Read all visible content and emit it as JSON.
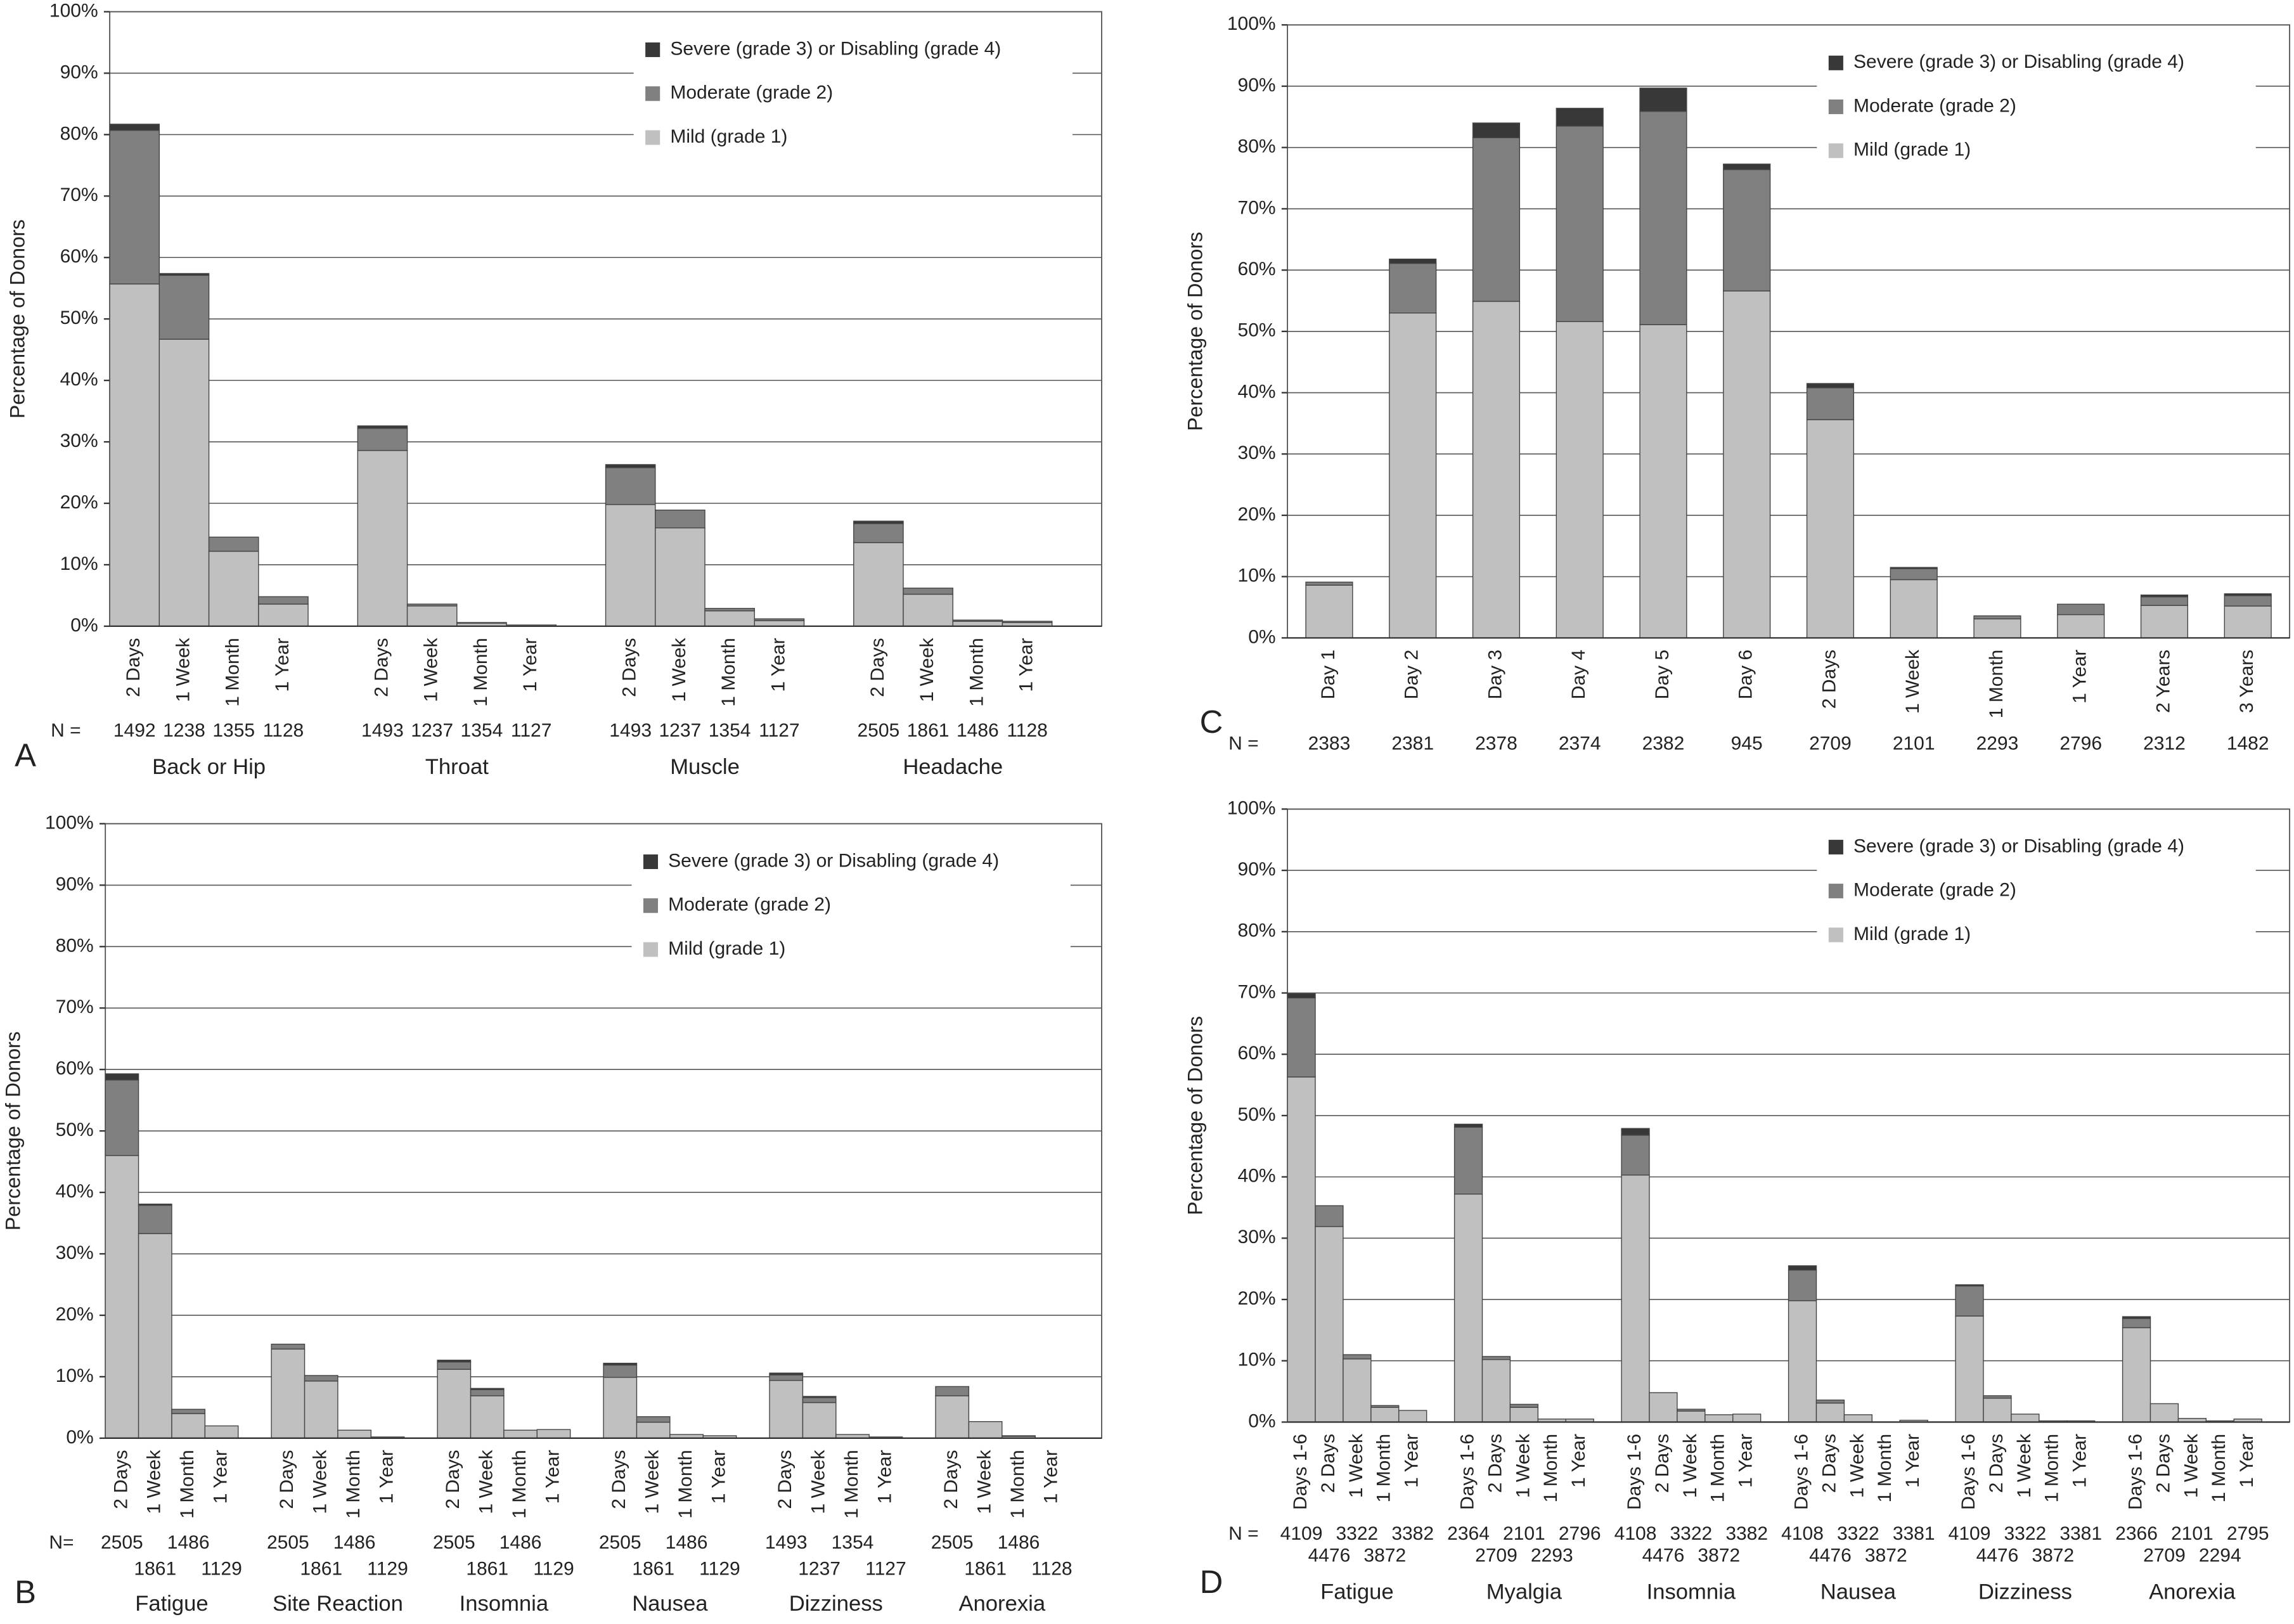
{
  "chart_data": [
    {
      "type": "bar",
      "label": "A",
      "y_label": "Percentage of Donors",
      "n_label": "N =",
      "ylim": [
        0,
        100
      ],
      "yticks": [
        {
          "value": 0,
          "label": "0%"
        },
        {
          "value": 10,
          "label": "10%"
        },
        {
          "value": 20,
          "label": "20%"
        },
        {
          "value": 30,
          "label": "30%"
        },
        {
          "value": 40,
          "label": "40%"
        },
        {
          "value": 50,
          "label": "50%"
        },
        {
          "value": 60,
          "label": "60%"
        },
        {
          "value": 70,
          "label": "70%"
        },
        {
          "value": 80,
          "label": "80%"
        },
        {
          "value": 90,
          "label": "90%"
        },
        {
          "value": 100,
          "label": "100%"
        }
      ],
      "grid": true,
      "groups": [
        {
          "name": "Back or Hip",
          "categories": [
            "2 Days",
            "1 Week",
            "1 Month",
            "1 Year"
          ],
          "n": [
            1492,
            1238,
            1355,
            1128
          ]
        },
        {
          "name": "Throat",
          "categories": [
            "2 Days",
            "1 Week",
            "1 Month",
            "1 Year"
          ],
          "n": [
            1493,
            1237,
            1354,
            1127
          ]
        },
        {
          "name": "Muscle",
          "categories": [
            "2 Days",
            "1 Week",
            "1 Month",
            "1 Year"
          ],
          "n": [
            1493,
            1237,
            1354,
            1127
          ]
        },
        {
          "name": "Headache",
          "categories": [
            "2 Days",
            "1 Week",
            "1 Month",
            "1 Year"
          ],
          "n": [
            2505,
            1861,
            1486,
            1128
          ]
        }
      ],
      "series": [
        {
          "name": "Mild (grade 1)",
          "color": "#c0c0c0",
          "values": [
            55.7,
            46.7,
            12.2,
            3.6,
            28.6,
            3.3,
            0.5,
            0.2,
            19.8,
            16.0,
            2.5,
            0.9,
            13.6,
            5.2,
            0.8,
            0.6
          ]
        },
        {
          "name": "Moderate (grade 2)",
          "color": "#808080",
          "values": [
            25.0,
            10.4,
            2.3,
            1.2,
            3.6,
            0.3,
            0.1,
            0,
            6.0,
            2.9,
            0.4,
            0.3,
            3.1,
            1.0,
            0.2,
            0.2
          ]
        },
        {
          "name": "Severe (grade 3) or Disabling (grade 4)",
          "color": "#383838",
          "values": [
            1.0,
            0.3,
            0,
            0,
            0.4,
            0,
            0,
            0,
            0.5,
            0,
            0,
            0,
            0.4,
            0,
            0,
            0
          ]
        }
      ]
    },
    {
      "type": "bar",
      "label": "B",
      "y_label": "Percentage of Donors",
      "n_label": "N=",
      "ylim": [
        0,
        100
      ],
      "yticks": [
        {
          "value": 0,
          "label": "0%"
        },
        {
          "value": 10,
          "label": "10%"
        },
        {
          "value": 20,
          "label": "20%"
        },
        {
          "value": 30,
          "label": "30%"
        },
        {
          "value": 40,
          "label": "40%"
        },
        {
          "value": 50,
          "label": "50%"
        },
        {
          "value": 60,
          "label": "60%"
        },
        {
          "value": 70,
          "label": "70%"
        },
        {
          "value": 80,
          "label": "80%"
        },
        {
          "value": 90,
          "label": "90%"
        },
        {
          "value": 100,
          "label": "100%"
        }
      ],
      "grid": true,
      "groups": [
        {
          "name": "Fatigue",
          "categories": [
            "2 Days",
            "1 Week",
            "1 Month",
            "1 Year"
          ],
          "n": [
            2505,
            1861,
            1486,
            1129
          ]
        },
        {
          "name": "Site Reaction",
          "categories": [
            "2 Days",
            "1 Week",
            "1 Month",
            "1 Year"
          ],
          "n": [
            2505,
            1861,
            1486,
            1129
          ]
        },
        {
          "name": "Insomnia",
          "categories": [
            "2 Days",
            "1 Week",
            "1 Month",
            "1 Year"
          ],
          "n": [
            2505,
            1861,
            1486,
            1129
          ]
        },
        {
          "name": "Nausea",
          "categories": [
            "2 Days",
            "1 Week",
            "1 Month",
            "1 Year"
          ],
          "n": [
            2505,
            1861,
            1486,
            1129
          ]
        },
        {
          "name": "Dizziness",
          "categories": [
            "2 Days",
            "1 Week",
            "1 Month",
            "1 Year"
          ],
          "n": [
            1493,
            1237,
            1354,
            1127
          ]
        },
        {
          "name": "Anorexia",
          "categories": [
            "2 Days",
            "1 Week",
            "1 Month",
            "1 Year"
          ],
          "n": [
            2505,
            1861,
            1486,
            1128
          ]
        }
      ],
      "series": [
        {
          "name": "Mild (grade 1)",
          "color": "#c0c0c0",
          "values": [
            46.0,
            33.3,
            4.0,
            2.0,
            14.5,
            9.3,
            1.3,
            0.2,
            11.2,
            6.9,
            1.3,
            1.4,
            9.9,
            2.6,
            0.6,
            0.4,
            9.4,
            5.8,
            0.6,
            0.2,
            6.9,
            2.7,
            0.3,
            0
          ]
        },
        {
          "name": "Moderate (grade 2)",
          "color": "#808080",
          "values": [
            12.3,
            4.6,
            0.7,
            0,
            0.8,
            0.9,
            0,
            0,
            1.2,
            1.0,
            0,
            0,
            2.0,
            0.9,
            0,
            0,
            0.9,
            0.8,
            0,
            0,
            1.5,
            0,
            0.1,
            0
          ]
        },
        {
          "name": "Severe (grade 3) or Disabling (grade 4)",
          "color": "#383838",
          "values": [
            1.0,
            0.2,
            0,
            0,
            0,
            0,
            0,
            0,
            0.3,
            0.2,
            0,
            0,
            0.3,
            0,
            0,
            0,
            0.3,
            0.2,
            0,
            0,
            0,
            0,
            0,
            0
          ]
        }
      ]
    },
    {
      "type": "bar",
      "label": "C",
      "y_label": "Percentage of Donors",
      "n_label": "N =",
      "ylim": [
        0,
        100
      ],
      "yticks": [
        {
          "value": 0,
          "label": "0%"
        },
        {
          "value": 10,
          "label": "10%"
        },
        {
          "value": 20,
          "label": "20%"
        },
        {
          "value": 30,
          "label": "30%"
        },
        {
          "value": 40,
          "label": "40%"
        },
        {
          "value": 50,
          "label": "50%"
        },
        {
          "value": 60,
          "label": "60%"
        },
        {
          "value": 70,
          "label": "70%"
        },
        {
          "value": 80,
          "label": "80%"
        },
        {
          "value": 90,
          "label": "90%"
        },
        {
          "value": 100,
          "label": "100%"
        }
      ],
      "grid": true,
      "categories": [
        "Day 1",
        "Day 2",
        "Day 3",
        "Day 4",
        "Day 5",
        "Day 6",
        "2 Days",
        "1 Week",
        "1 Month",
        "1 Year",
        "2 Years",
        "3 Years"
      ],
      "n": [
        2383,
        2381,
        2378,
        2374,
        2382,
        945,
        2709,
        2101,
        2293,
        2796,
        2312,
        1482
      ],
      "series": [
        {
          "name": "Mild (grade 1)",
          "color": "#c0c0c0",
          "values": [
            8.6,
            53.0,
            54.9,
            51.6,
            51.1,
            56.6,
            35.6,
            9.5,
            3.1,
            3.8,
            5.3,
            5.2
          ]
        },
        {
          "name": "Moderate (grade 2)",
          "color": "#808080",
          "values": [
            0.5,
            8.1,
            26.7,
            31.9,
            34.8,
            19.8,
            5.2,
            1.8,
            0.5,
            1.7,
            1.4,
            1.7
          ]
        },
        {
          "name": "Severe (grade 3) or Disabling (grade 4)",
          "color": "#383838",
          "values": [
            0,
            0.7,
            2.4,
            2.9,
            3.8,
            0.9,
            0.7,
            0.2,
            0,
            0,
            0.3,
            0.3
          ]
        }
      ]
    },
    {
      "type": "bar",
      "label": "D",
      "y_label": "Percentage of Donors",
      "n_label": "N =",
      "ylim": [
        0,
        100
      ],
      "yticks": [
        {
          "value": 0,
          "label": "0%"
        },
        {
          "value": 10,
          "label": "10%"
        },
        {
          "value": 20,
          "label": "20%"
        },
        {
          "value": 30,
          "label": "30%"
        },
        {
          "value": 40,
          "label": "40%"
        },
        {
          "value": 50,
          "label": "50%"
        },
        {
          "value": 60,
          "label": "60%"
        },
        {
          "value": 70,
          "label": "70%"
        },
        {
          "value": 80,
          "label": "80%"
        },
        {
          "value": 90,
          "label": "90%"
        },
        {
          "value": 100,
          "label": "100%"
        }
      ],
      "grid": true,
      "groups": [
        {
          "name": "Fatigue",
          "categories": [
            "Days 1-6",
            "2 Days",
            "1 Week",
            "1 Month",
            "1 Year"
          ],
          "n": [
            4109,
            4476,
            3322,
            3872,
            3382
          ]
        },
        {
          "name": "Myalgia",
          "categories": [
            "Days 1-6",
            "2 Days",
            "1 Week",
            "1 Month",
            "1 Year"
          ],
          "n": [
            2364,
            2709,
            2101,
            2293,
            2796
          ]
        },
        {
          "name": "Insomnia",
          "categories": [
            "Days 1-6",
            "2 Days",
            "1 Week",
            "1 Month",
            "1 Year"
          ],
          "n": [
            4108,
            4476,
            3322,
            3872,
            3382
          ]
        },
        {
          "name": "Nausea",
          "categories": [
            "Days 1-6",
            "2 Days",
            "1 Week",
            "1 Month",
            "1 Year"
          ],
          "n": [
            4108,
            4476,
            3322,
            3872,
            3381
          ]
        },
        {
          "name": "Dizziness",
          "categories": [
            "Days 1-6",
            "2 Days",
            "1 Week",
            "1 Month",
            "1 Year"
          ],
          "n": [
            4109,
            4476,
            3322,
            3872,
            3381
          ]
        },
        {
          "name": "Anorexia",
          "categories": [
            "Days 1-6",
            "2 Days",
            "1 Week",
            "1 Month",
            "1 Year"
          ],
          "n": [
            2366,
            2709,
            2101,
            2294,
            2795
          ]
        }
      ],
      "series": [
        {
          "name": "Mild (grade 1)",
          "color": "#c0c0c0",
          "values": [
            56.3,
            31.9,
            10.3,
            2.4,
            1.9,
            37.2,
            10.2,
            2.4,
            0.5,
            0.5,
            40.3,
            4.8,
            1.8,
            1.2,
            1.3,
            19.8,
            3.1,
            1.2,
            0,
            0.3,
            17.3,
            3.9,
            1.3,
            0.2,
            0.2,
            15.4,
            3.0,
            0.6,
            0.2,
            0.5
          ]
        },
        {
          "name": "Moderate (grade 2)",
          "color": "#808080",
          "values": [
            12.9,
            3.4,
            0.7,
            0.3,
            0,
            10.9,
            0.5,
            0.5,
            0,
            0,
            6.5,
            0,
            0.3,
            0,
            0,
            5.0,
            0.5,
            0,
            0,
            0,
            4.9,
            0.4,
            0,
            0,
            0,
            1.5,
            0,
            0,
            0,
            0
          ]
        },
        {
          "name": "Severe (grade 3) or Disabling (grade 4)",
          "color": "#383838",
          "values": [
            0.7,
            0,
            0,
            0,
            0,
            0.5,
            0,
            0,
            0,
            0,
            1.1,
            0,
            0,
            0,
            0,
            0.7,
            0,
            0,
            0,
            0,
            0.2,
            0,
            0,
            0,
            0,
            0.3,
            0,
            0,
            0,
            0
          ]
        }
      ]
    }
  ]
}
